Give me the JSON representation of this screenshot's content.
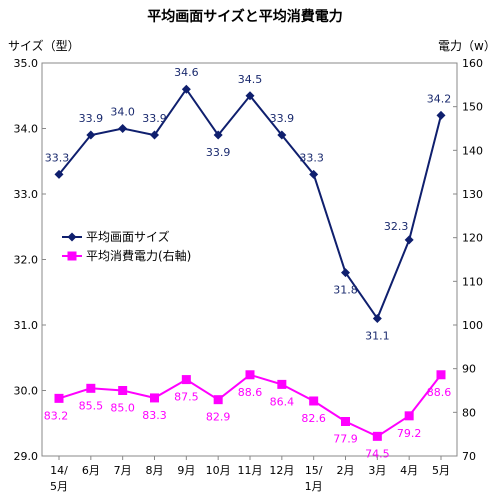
{
  "chart_data": {
    "type": "line",
    "title": "平均画面サイズと平均消費電力",
    "ylabel_left": "サイズ（型）",
    "ylabel_right": "電力（w）",
    "categories": [
      {
        "line1": "14/",
        "line2": "5月"
      },
      {
        "line1": "6月",
        "line2": ""
      },
      {
        "line1": "7月",
        "line2": ""
      },
      {
        "line1": "8月",
        "line2": ""
      },
      {
        "line1": "9月",
        "line2": ""
      },
      {
        "line1": "10月",
        "line2": ""
      },
      {
        "line1": "11月",
        "line2": ""
      },
      {
        "line1": "12月",
        "line2": ""
      },
      {
        "line1": "15/",
        "line2": "1月"
      },
      {
        "line1": "2月",
        "line2": ""
      },
      {
        "line1": "3月",
        "line2": ""
      },
      {
        "line1": "4月",
        "line2": ""
      },
      {
        "line1": "5月",
        "line2": ""
      }
    ],
    "y_left": {
      "min": 29.0,
      "max": 35.0,
      "ticks": [
        "29.0",
        "30.0",
        "31.0",
        "32.0",
        "33.0",
        "34.0",
        "35.0"
      ]
    },
    "y_right": {
      "min": 70,
      "max": 160,
      "ticks": [
        "70",
        "80",
        "90",
        "100",
        "110",
        "120",
        "130",
        "140",
        "150",
        "160"
      ]
    },
    "series": [
      {
        "name": "平均画面サイズ",
        "axis": "left",
        "color": "#0f1f6e",
        "marker": "diamond",
        "values": [
          33.3,
          33.9,
          34.0,
          33.9,
          34.6,
          33.9,
          34.5,
          33.9,
          33.3,
          31.8,
          31.1,
          32.3,
          34.2
        ],
        "labels": [
          "33.3",
          "33.9",
          "34.0",
          "33.9",
          "34.6",
          "33.9",
          "34.5",
          "33.9",
          "33.3",
          "31.8",
          "31.1",
          "32.3",
          "34.2"
        ]
      },
      {
        "name": "平均消費電力(右軸)",
        "axis": "right",
        "color": "#ff00ff",
        "marker": "square",
        "values": [
          83.2,
          85.5,
          85.0,
          83.3,
          87.5,
          82.9,
          88.6,
          86.4,
          82.6,
          77.9,
          74.5,
          79.2,
          88.6
        ],
        "labels": [
          "83.2",
          "85.5",
          "85.0",
          "83.3",
          "87.5",
          "82.9",
          "88.6",
          "86.4",
          "82.6",
          "77.9",
          "74.5",
          "79.2",
          "88.6"
        ]
      }
    ],
    "legend_position": "left-middle",
    "grid": false
  }
}
